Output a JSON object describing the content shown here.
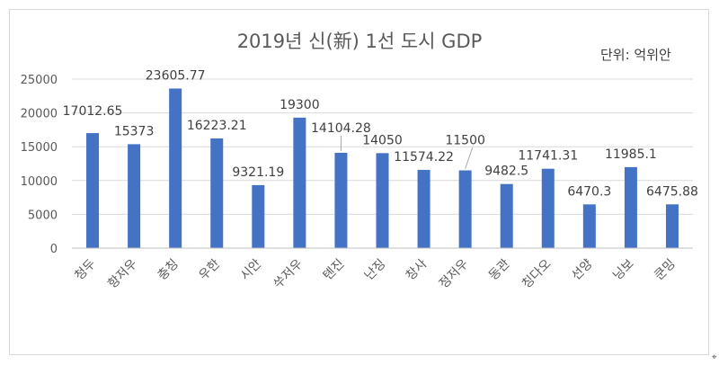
{
  "chart_data": {
    "type": "bar",
    "title": "2019년 신(新) 1선 도시 GDP",
    "unit_note": "단위: 억위안",
    "categories": [
      "청두",
      "항저우",
      "충칭",
      "우한",
      "시안",
      "쑤저우",
      "톈진",
      "난징",
      "창사",
      "정저우",
      "동관",
      "칭다오",
      "선양",
      "닝보",
      "쿤밍"
    ],
    "values": [
      17012.65,
      15373,
      23605.77,
      16223.21,
      9321.19,
      19300,
      14104.28,
      14050,
      11574.22,
      11500,
      9482.5,
      11741.31,
      6470.3,
      11985.1,
      6475.88
    ],
    "data_labels": [
      "17012.65",
      "15373",
      "23605.77",
      "16223.21",
      "9321.19",
      "19300",
      "14104.28",
      "14050",
      "11574.22",
      "11500",
      "9482.5",
      "11741.31",
      "6470.3",
      "11985.1",
      "6475.88"
    ],
    "ylim": [
      0,
      25000
    ],
    "yticks": [
      "0",
      "5000",
      "10000",
      "15000",
      "20000",
      "25000"
    ],
    "grid": true,
    "bar_color": "#4472c4",
    "grid_color": "#d9d9d9"
  }
}
